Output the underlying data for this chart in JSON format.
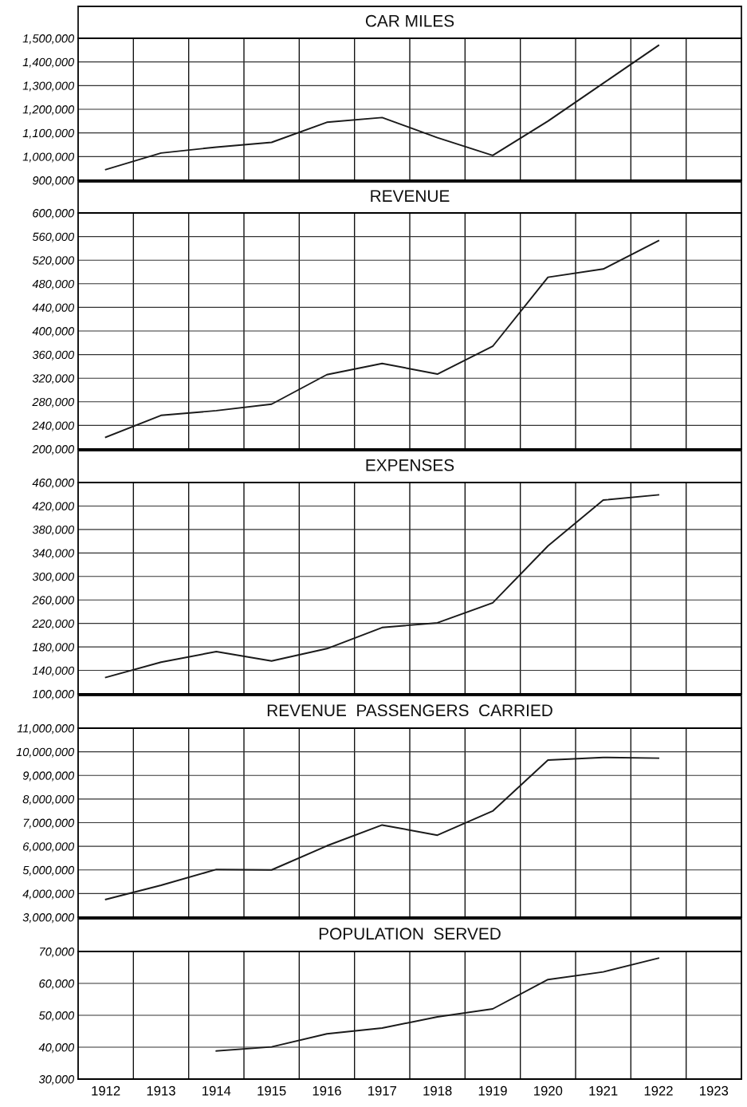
{
  "chart_data": [
    {
      "type": "line",
      "title": "CAR MILES",
      "categories": [
        "1912",
        "1913",
        "1914",
        "1915",
        "1916",
        "1917",
        "1918",
        "1919",
        "1920",
        "1921",
        "1922",
        "1923"
      ],
      "series": [
        {
          "color": "#1a1a1a",
          "values": [
            945000,
            1015000,
            1040000,
            1060000,
            1145000,
            1165000,
            1080000,
            1005000,
            1150000,
            1310000,
            1470000,
            null
          ]
        }
      ],
      "ylim": [
        900000,
        1500000
      ],
      "yticks": [
        {
          "value": 900000,
          "label": "900,000"
        },
        {
          "value": 1000000,
          "label": "1,000,000"
        },
        {
          "value": 1100000,
          "label": "1,100,000"
        },
        {
          "value": 1200000,
          "label": "1,200,000"
        },
        {
          "value": 1300000,
          "label": "1,300,000"
        },
        {
          "value": 1400000,
          "label": "1,400,000"
        },
        {
          "value": 1500000,
          "label": "1,500,000"
        }
      ],
      "grid": true,
      "tick_labels": "y"
    },
    {
      "type": "line",
      "title": "REVENUE",
      "categories": [
        "1912",
        "1913",
        "1914",
        "1915",
        "1916",
        "1917",
        "1918",
        "1919",
        "1920",
        "1921",
        "1922",
        "1923"
      ],
      "series": [
        {
          "color": "#1a1a1a",
          "values": [
            220000,
            257000,
            265000,
            276000,
            326000,
            345000,
            327000,
            374000,
            491000,
            505000,
            553000,
            null
          ]
        }
      ],
      "ylim": [
        200000,
        600000
      ],
      "yticks": [
        {
          "value": 200000,
          "label": "200,000"
        },
        {
          "value": 240000,
          "label": "240,000"
        },
        {
          "value": 280000,
          "label": "280,000"
        },
        {
          "value": 320000,
          "label": "320,000"
        },
        {
          "value": 360000,
          "label": "360,000"
        },
        {
          "value": 400000,
          "label": "400,000"
        },
        {
          "value": 440000,
          "label": "440,000"
        },
        {
          "value": 480000,
          "label": "480,000"
        },
        {
          "value": 520000,
          "label": "520,000"
        },
        {
          "value": 560000,
          "label": "560,000"
        },
        {
          "value": 600000,
          "label": "600,000"
        }
      ],
      "grid": true,
      "tick_labels": "y"
    },
    {
      "type": "line",
      "title": "EXPENSES",
      "categories": [
        "1912",
        "1913",
        "1914",
        "1915",
        "1916",
        "1917",
        "1918",
        "1919",
        "1920",
        "1921",
        "1922",
        "1923"
      ],
      "series": [
        {
          "color": "#1a1a1a",
          "values": [
            128000,
            154000,
            172000,
            156000,
            177000,
            213000,
            221000,
            255000,
            352000,
            430000,
            439000,
            null
          ]
        }
      ],
      "ylim": [
        100000,
        460000
      ],
      "yticks": [
        {
          "value": 100000,
          "label": "100,000"
        },
        {
          "value": 140000,
          "label": "140,000"
        },
        {
          "value": 180000,
          "label": "180,000"
        },
        {
          "value": 220000,
          "label": "220,000"
        },
        {
          "value": 260000,
          "label": "260,000"
        },
        {
          "value": 300000,
          "label": "300,000"
        },
        {
          "value": 340000,
          "label": "340,000"
        },
        {
          "value": 380000,
          "label": "380,000"
        },
        {
          "value": 420000,
          "label": "420,000"
        },
        {
          "value": 460000,
          "label": "460,000"
        }
      ],
      "grid": true,
      "tick_labels": "y"
    },
    {
      "type": "line",
      "title": "REVENUE  PASSENGERS  CARRIED",
      "categories": [
        "1912",
        "1913",
        "1914",
        "1915",
        "1916",
        "1917",
        "1918",
        "1919",
        "1920",
        "1921",
        "1922",
        "1923"
      ],
      "series": [
        {
          "color": "#1a1a1a",
          "values": [
            3750000,
            4350000,
            5020000,
            5000000,
            6020000,
            6900000,
            6470000,
            7490000,
            9650000,
            9760000,
            9730000,
            null
          ]
        }
      ],
      "ylim": [
        3000000,
        11000000
      ],
      "yticks": [
        {
          "value": 3000000,
          "label": "3,000,000"
        },
        {
          "value": 4000000,
          "label": "4,000,000"
        },
        {
          "value": 5000000,
          "label": "5,000,000"
        },
        {
          "value": 6000000,
          "label": "6,000,000"
        },
        {
          "value": 7000000,
          "label": "7,000,000"
        },
        {
          "value": 8000000,
          "label": "8,000,000"
        },
        {
          "value": 9000000,
          "label": "9,000,000"
        },
        {
          "value": 10000000,
          "label": "10,000,000"
        },
        {
          "value": 11000000,
          "label": "11,000,000"
        }
      ],
      "grid": true,
      "tick_labels": "y"
    },
    {
      "type": "line",
      "title": "POPULATION  SERVED",
      "categories": [
        "1912",
        "1913",
        "1914",
        "1915",
        "1916",
        "1917",
        "1918",
        "1919",
        "1920",
        "1921",
        "1922",
        "1923"
      ],
      "series": [
        {
          "color": "#1a1a1a",
          "values": [
            null,
            null,
            38800,
            40100,
            44200,
            46000,
            49500,
            52000,
            61200,
            63600,
            67900,
            null
          ]
        }
      ],
      "ylim": [
        30000,
        70000
      ],
      "yticks": [
        {
          "value": 30000,
          "label": "30,000"
        },
        {
          "value": 40000,
          "label": "40,000"
        },
        {
          "value": 50000,
          "label": "50,000"
        },
        {
          "value": 60000,
          "label": "60,000"
        },
        {
          "value": 70000,
          "label": "70,000"
        }
      ],
      "grid": true
    }
  ]
}
